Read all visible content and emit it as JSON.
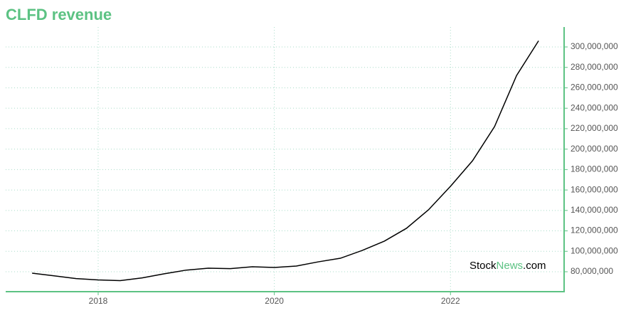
{
  "chart_data": {
    "type": "line",
    "title": "CLFD revenue",
    "x": [
      2017.25,
      2017.5,
      2017.75,
      2018,
      2018.25,
      2018.5,
      2018.75,
      2019,
      2019.25,
      2019.5,
      2019.75,
      2020,
      2020.25,
      2020.5,
      2020.75,
      2021,
      2021.25,
      2021.5,
      2021.75,
      2022,
      2022.25,
      2022.5,
      2022.75,
      2023
    ],
    "series": [
      {
        "name": "Revenue",
        "color": "#000000",
        "values": [
          78600000,
          76000000,
          73300000,
          72000000,
          71300000,
          74000000,
          78000000,
          81600000,
          83500000,
          83000000,
          84900000,
          84200000,
          85600000,
          89700000,
          93200000,
          100900000,
          110000000,
          122500000,
          140600000,
          163600000,
          188600000,
          222000000,
          272000000,
          306000000
        ]
      }
    ],
    "xlim": [
      2016.95,
      2023.29
    ],
    "xticks": [
      2018,
      2020,
      2022
    ],
    "ylim": [
      60500000,
      319500000
    ],
    "yticks": [
      {
        "value": 80000000,
        "label": "80,000,000"
      },
      {
        "value": 100000000,
        "label": "100,000,000"
      },
      {
        "value": 120000000,
        "label": "120,000,000"
      },
      {
        "value": 140000000,
        "label": "140,000,000"
      },
      {
        "value": 160000000,
        "label": "160,000,000"
      },
      {
        "value": 180000000,
        "label": "180,000,000"
      },
      {
        "value": 200000000,
        "label": "200,000,000"
      },
      {
        "value": 220000000,
        "label": "220,000,000"
      },
      {
        "value": 240000000,
        "label": "240,000,000"
      },
      {
        "value": 260000000,
        "label": "260,000,000"
      },
      {
        "value": 280000000,
        "label": "280,000,000"
      },
      {
        "value": 300000000,
        "label": "300,000,000"
      }
    ],
    "grid": true,
    "axis_color": "#5cc283",
    "grid_color": "#a8dcc8",
    "watermark": {
      "prefix": "Stock",
      "highlight": "News",
      "suffix": ".com"
    }
  }
}
